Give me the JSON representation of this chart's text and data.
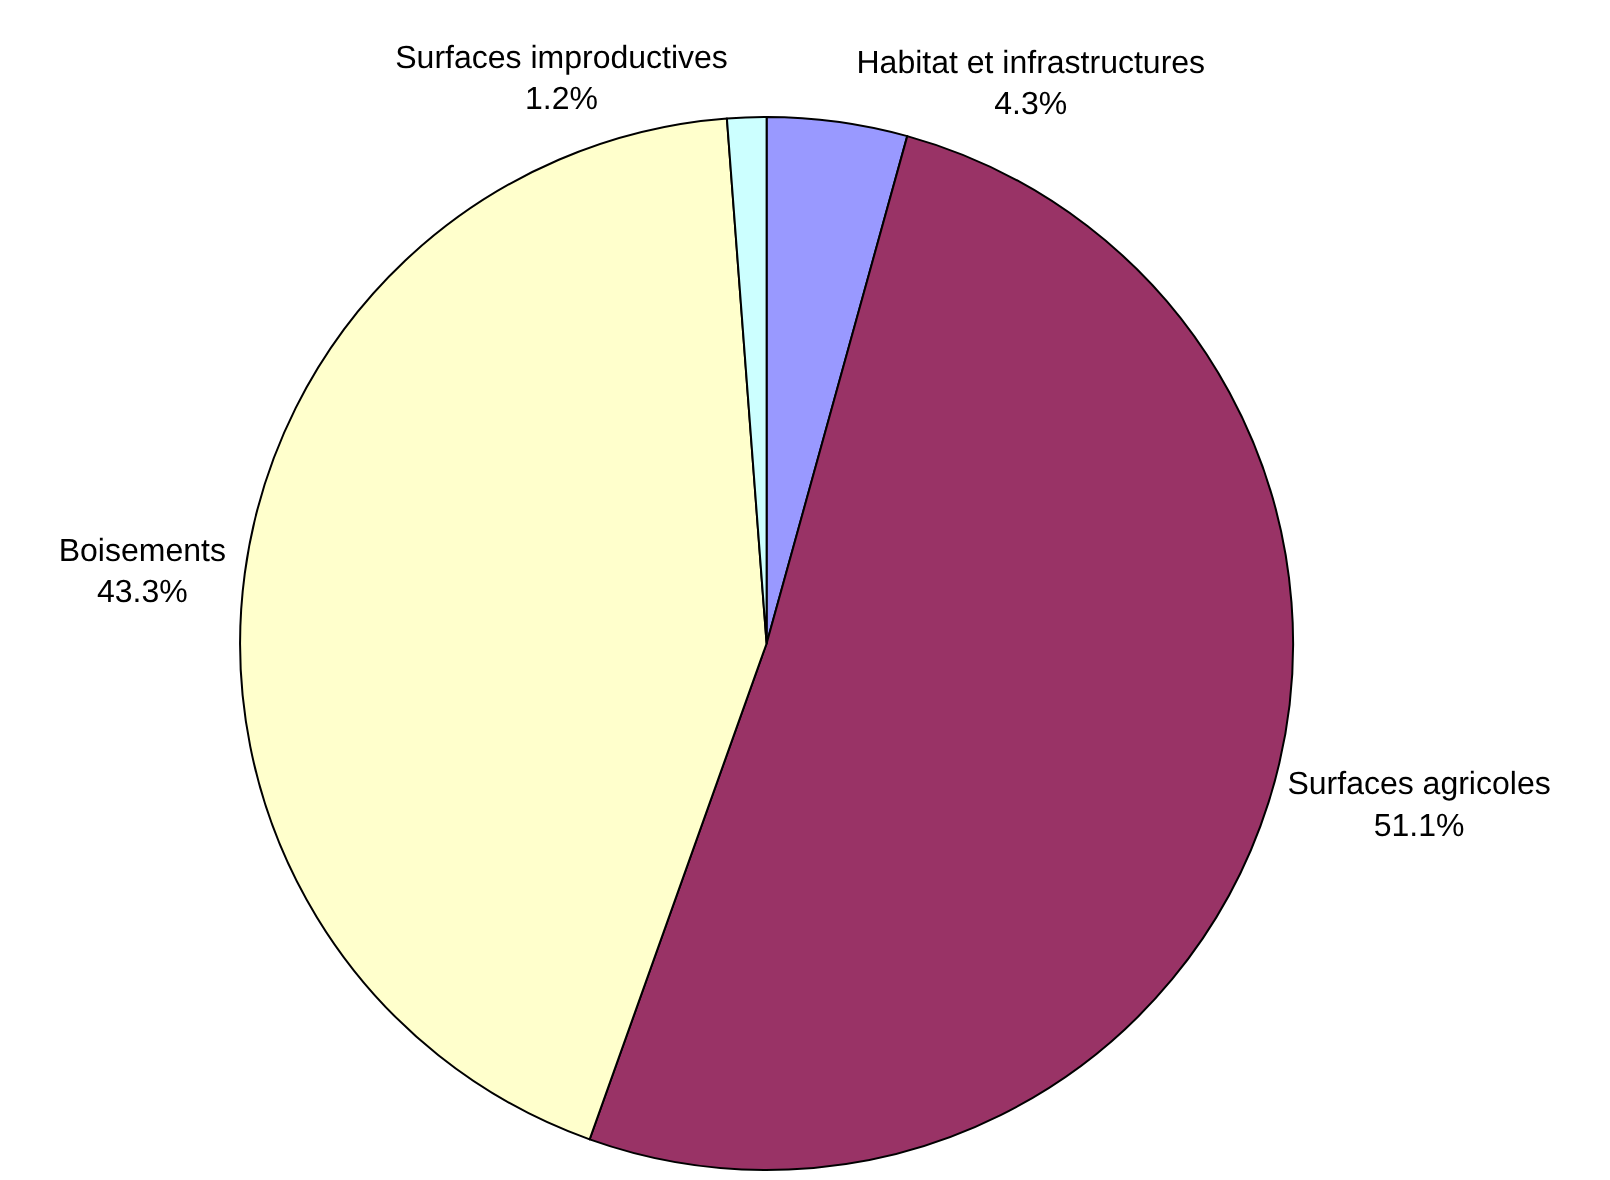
{
  "chart_data": {
    "type": "pie",
    "categories": [
      "Habitat et infrastructures",
      "Surfaces agricoles",
      "Boisements",
      "Surfaces improductives"
    ],
    "values": [
      4.3,
      51.1,
      43.3,
      1.2
    ],
    "colors": [
      "#9999ff",
      "#993366",
      "#ffffcc",
      "#ccffff"
    ],
    "value_labels": [
      "4.3%",
      "51.1%",
      "43.3%",
      "1.2%"
    ],
    "legend": false
  }
}
